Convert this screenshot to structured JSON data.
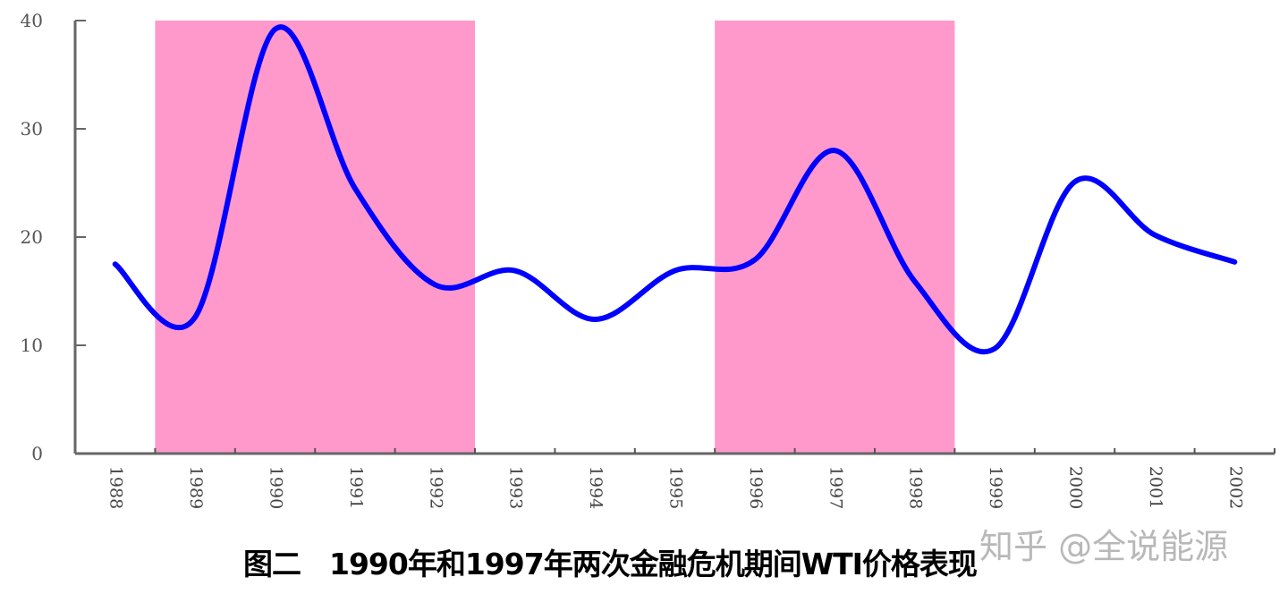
{
  "chart_data": {
    "type": "line",
    "title": "图二　1990年和1997年两次金融危机期间WTI价格表现",
    "xlabel": "",
    "ylabel": "",
    "categories": [
      "1988",
      "1989",
      "1990",
      "1991",
      "1992",
      "1993",
      "1994",
      "1995",
      "1996",
      "1997",
      "1998",
      "1999",
      "2000",
      "2001",
      "2002"
    ],
    "series": [
      {
        "name": "WTI价格",
        "color": "#0000ff",
        "values": [
          17.5,
          12.6,
          39.2,
          24.5,
          15.6,
          16.9,
          12.4,
          16.9,
          17.9,
          28.0,
          15.9,
          9.7,
          25.1,
          20.2,
          17.7
        ]
      }
    ],
    "ylim": [
      0,
      40
    ],
    "yticks": [
      "0",
      "10",
      "20",
      "30",
      "40"
    ],
    "grid": false,
    "legend": "none",
    "shaded_regions": [
      {
        "label": "1990年金融危机",
        "from_tick": 1,
        "to_tick": 5,
        "color": "#ff99cc"
      },
      {
        "label": "1997年金融危机",
        "from_tick": 8,
        "to_tick": 11,
        "color": "#ff99cc"
      }
    ],
    "x_label_rotation": 90
  },
  "caption": "图二　1990年和1997年两次金融危机期间WTI价格表现",
  "watermark": "知乎 @全说能源"
}
